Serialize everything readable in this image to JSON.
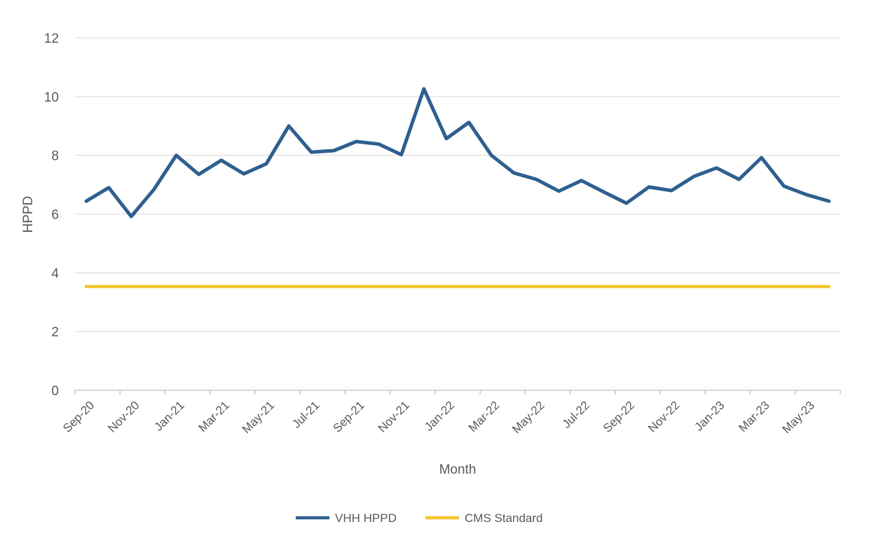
{
  "chart_data": {
    "type": "line",
    "title": "",
    "xlabel": "Month",
    "ylabel": "HPPD",
    "ylim": [
      0,
      12
    ],
    "yticks": [
      0,
      2,
      4,
      6,
      8,
      10,
      12
    ],
    "grid": true,
    "legend_position": "bottom",
    "categories": [
      "Sep-20",
      "Oct-20",
      "Nov-20",
      "Dec-20",
      "Jan-21",
      "Feb-21",
      "Mar-21",
      "Apr-21",
      "May-21",
      "Jun-21",
      "Jul-21",
      "Aug-21",
      "Sep-21",
      "Oct-21",
      "Nov-21",
      "Dec-21",
      "Jan-22",
      "Feb-22",
      "Mar-22",
      "Apr-22",
      "May-22",
      "Jun-22",
      "Jul-22",
      "Aug-22",
      "Sep-22",
      "Oct-22",
      "Nov-22",
      "Dec-22",
      "Jan-23",
      "Feb-23",
      "Mar-23",
      "Apr-23",
      "May-23",
      "Jun-23"
    ],
    "xtick_labels": [
      "Sep-20",
      "Nov-20",
      "Jan-21",
      "Mar-21",
      "May-21",
      "Jul-21",
      "Sep-21",
      "Nov-21",
      "Jan-22",
      "Mar-22",
      "May-22",
      "Jul-22",
      "Sep-22",
      "Nov-22",
      "Jan-23",
      "Mar-23",
      "May-23"
    ],
    "series": [
      {
        "name": "VHH HPPD",
        "color": "#2E5F8F",
        "values": [
          6.44,
          6.9,
          5.92,
          6.83,
          8.0,
          7.35,
          7.83,
          7.37,
          7.71,
          9.0,
          8.11,
          8.16,
          8.47,
          8.38,
          8.02,
          10.26,
          8.57,
          9.12,
          8.0,
          7.4,
          7.18,
          6.78,
          7.14,
          6.75,
          6.37,
          6.92,
          6.8,
          7.28,
          7.57,
          7.18,
          7.92,
          6.95,
          6.66,
          6.44
        ]
      },
      {
        "name": "CMS Standard",
        "color": "#F5C330",
        "values": [
          3.53,
          3.53,
          3.53,
          3.53,
          3.53,
          3.53,
          3.53,
          3.53,
          3.53,
          3.53,
          3.53,
          3.53,
          3.53,
          3.53,
          3.53,
          3.53,
          3.53,
          3.53,
          3.53,
          3.53,
          3.53,
          3.53,
          3.53,
          3.53,
          3.53,
          3.53,
          3.53,
          3.53,
          3.53,
          3.53,
          3.53,
          3.53,
          3.53,
          3.53
        ]
      }
    ]
  }
}
